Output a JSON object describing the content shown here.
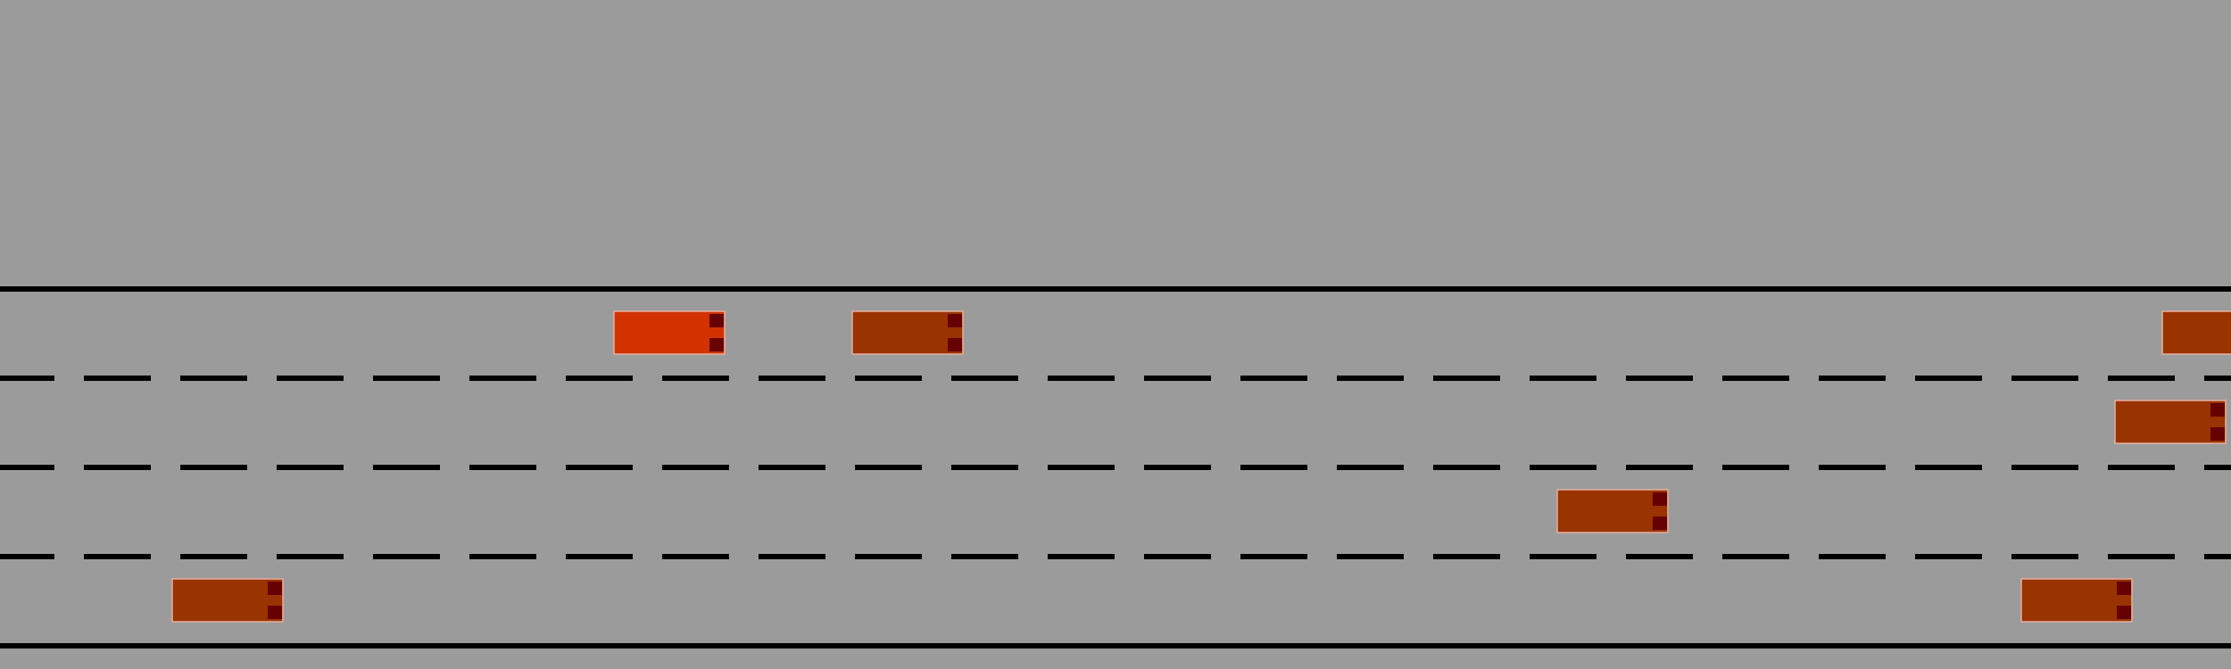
{
  "colors": {
    "background": "#9b9b9b",
    "road_line": "#000000",
    "ego_car": "#d23200",
    "other_car": "#993300",
    "car_border": "#e8b0a0",
    "tail_light": "#660000"
  },
  "road": {
    "lane_count": 4,
    "boundary_style": "solid",
    "divider_style": "dashed"
  },
  "vehicles": [
    {
      "name": "ego-car",
      "role": "ego",
      "lane": 1,
      "x_fraction": 0.275
    },
    {
      "name": "car-1",
      "role": "other",
      "lane": 1,
      "x_fraction": 0.382
    },
    {
      "name": "car-2",
      "role": "other",
      "lane": 1,
      "x_fraction": 0.969
    },
    {
      "name": "car-3",
      "role": "other",
      "lane": 2,
      "x_fraction": 0.948
    },
    {
      "name": "car-4",
      "role": "other",
      "lane": 3,
      "x_fraction": 0.698
    },
    {
      "name": "car-5",
      "role": "other",
      "lane": 4,
      "x_fraction": 0.077
    },
    {
      "name": "car-6",
      "role": "other",
      "lane": 4,
      "x_fraction": 0.906
    }
  ]
}
